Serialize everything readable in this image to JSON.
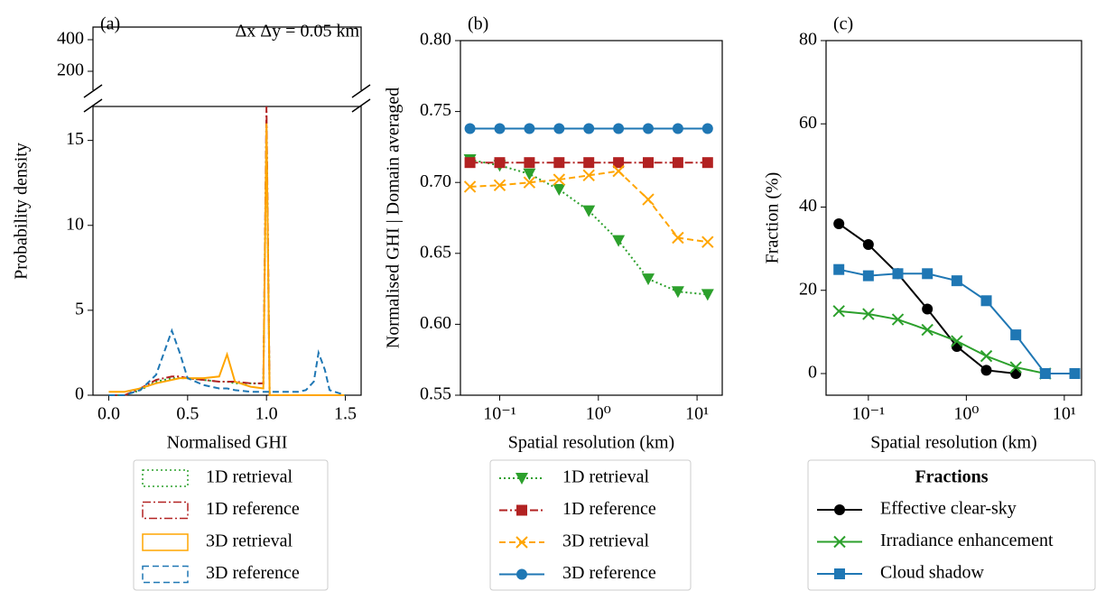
{
  "chart_data": [
    {
      "type": "line",
      "panel_label": "(a)",
      "annotation": "Δx Δy = 0.05 km",
      "xlabel": "Normalised GHI",
      "ylabel": "Probability density",
      "broken_axis": true,
      "legend": "below",
      "legend_style": "patch",
      "x": [
        0.0,
        0.1,
        0.2,
        0.3,
        0.35,
        0.4,
        0.45,
        0.5,
        0.6,
        0.7,
        0.75,
        0.8,
        0.9,
        0.98,
        1.0,
        1.02,
        1.1,
        1.2,
        1.25,
        1.3,
        1.33,
        1.37,
        1.4,
        1.5
      ],
      "series": [
        {
          "name": "1D retrieval",
          "color": "#2ca02c",
          "linestyle": "dotted",
          "values": [
            0,
            0,
            0.3,
            0.8,
            0.9,
            1.0,
            1.0,
            1.0,
            0.9,
            0.8,
            0.8,
            0.7,
            0.7,
            0.7,
            16,
            0,
            0,
            0,
            0,
            0,
            0,
            0,
            0,
            0
          ]
        },
        {
          "name": "1D reference",
          "color": "#b22222",
          "linestyle": "dashdot",
          "values": [
            0,
            0,
            0.4,
            0.9,
            1.0,
            1.1,
            1.1,
            1.0,
            0.9,
            0.8,
            0.8,
            0.8,
            0.7,
            0.7,
            17,
            0,
            0,
            0,
            0,
            0,
            0,
            0,
            0,
            0
          ]
        },
        {
          "name": "3D retrieval",
          "color": "#ffa500",
          "linestyle": "solid",
          "values": [
            0.2,
            0.2,
            0.4,
            0.7,
            0.8,
            0.9,
            1.0,
            1.0,
            1.0,
            1.1,
            2.4,
            0.8,
            0.5,
            0.4,
            16,
            0,
            0,
            0,
            0,
            0,
            0,
            0,
            0,
            0
          ]
        },
        {
          "name": "3D reference",
          "color": "#1f77b4",
          "linestyle": "dashed",
          "values": [
            0,
            0,
            0.3,
            1.2,
            2.5,
            3.8,
            2.5,
            1.0,
            0.6,
            0.4,
            0.4,
            0.3,
            0.2,
            0.2,
            0.2,
            0.2,
            0.2,
            0.2,
            0.3,
            0.8,
            2.5,
            1.5,
            0.3,
            0
          ]
        }
      ],
      "xlim": [
        -0.1,
        1.6
      ],
      "xticks": [
        {
          "value": 0,
          "label": "0.0"
        },
        0.5,
        {
          "value": 1,
          "label": "1.0"
        },
        1.5
      ],
      "ylim": [
        0,
        17
      ],
      "yticks": [
        0,
        5,
        10,
        15
      ],
      "top_ylim": [
        80,
        480
      ],
      "top_yticks": [
        200,
        400
      ]
    },
    {
      "type": "line",
      "panel_label": "(b)",
      "xlabel": "Spatial resolution (km)",
      "ylabel": "Normalised GHI | Domain averaged",
      "xscale": "log",
      "legend": "below",
      "legend_style": "line",
      "x": [
        0.05,
        0.1,
        0.2,
        0.4,
        0.8,
        1.6,
        3.2,
        6.4,
        12.8
      ],
      "series": [
        {
          "name": "1D retrieval",
          "color": "#2ca02c",
          "linestyle": "dotted",
          "marker": "v",
          "values": [
            0.716,
            0.712,
            0.706,
            0.695,
            0.68,
            0.659,
            0.632,
            0.623,
            0.621
          ]
        },
        {
          "name": "1D reference",
          "color": "#b22222",
          "linestyle": "dashdot",
          "marker": "s",
          "values": [
            0.714,
            0.714,
            0.714,
            0.714,
            0.714,
            0.714,
            0.714,
            0.714,
            0.714
          ]
        },
        {
          "name": "3D retrieval",
          "color": "#ffa500",
          "linestyle": "dashed",
          "marker": "x",
          "values": [
            0.697,
            0.698,
            0.7,
            0.702,
            0.705,
            0.708,
            0.688,
            0.661,
            0.658
          ]
        },
        {
          "name": "3D reference",
          "color": "#1f77b4",
          "linestyle": "solid",
          "marker": "o",
          "values": [
            0.738,
            0.738,
            0.738,
            0.738,
            0.738,
            0.738,
            0.738,
            0.738,
            0.738
          ]
        }
      ],
      "xlim": [
        0.04,
        18
      ],
      "xticks": [
        {
          "value": 0.1,
          "label": "10⁻¹"
        },
        {
          "value": 1,
          "label": "10⁰"
        },
        {
          "value": 10,
          "label": "10¹"
        }
      ],
      "ylim": [
        0.55,
        0.8
      ],
      "yticks": [
        0.55,
        {
          "value": 0.6,
          "label": "0.60"
        },
        0.65,
        {
          "value": 0.7,
          "label": "0.70"
        },
        0.75,
        {
          "value": 0.8,
          "label": "0.80"
        }
      ]
    },
    {
      "type": "line",
      "panel_label": "(c)",
      "xlabel": "Spatial resolution (km)",
      "ylabel": "Fraction (%)",
      "xscale": "log",
      "legend": "below",
      "legend_style": "line",
      "legend_title": "Fractions",
      "x": [
        0.05,
        0.1,
        0.2,
        0.4,
        0.8,
        1.6,
        3.2,
        6.4,
        12.8
      ],
      "series": [
        {
          "name": "Effective clear-sky",
          "color": "#000000",
          "linestyle": "solid",
          "marker": "o",
          "values": [
            36,
            31,
            24,
            15.5,
            6.5,
            0.8,
            0,
            null,
            null
          ]
        },
        {
          "name": "Irradiance enhancement",
          "color": "#2ca02c",
          "linestyle": "solid",
          "marker": "x",
          "values": [
            15,
            14.3,
            13,
            10.5,
            7.8,
            4.2,
            1.5,
            0,
            null
          ]
        },
        {
          "name": "Cloud shadow",
          "color": "#1f77b4",
          "linestyle": "solid",
          "marker": "s",
          "values": [
            25,
            23.5,
            24,
            24,
            22.3,
            17.5,
            9.3,
            0,
            0
          ]
        }
      ],
      "xlim": [
        0.037,
        15
      ],
      "xticks": [
        {
          "value": 0.1,
          "label": "10⁻¹"
        },
        {
          "value": 1,
          "label": "10⁰"
        },
        {
          "value": 10,
          "label": "10¹"
        }
      ],
      "ylim": [
        -5.2,
        80
      ],
      "yticks": [
        0,
        20,
        40,
        60,
        80
      ]
    }
  ]
}
